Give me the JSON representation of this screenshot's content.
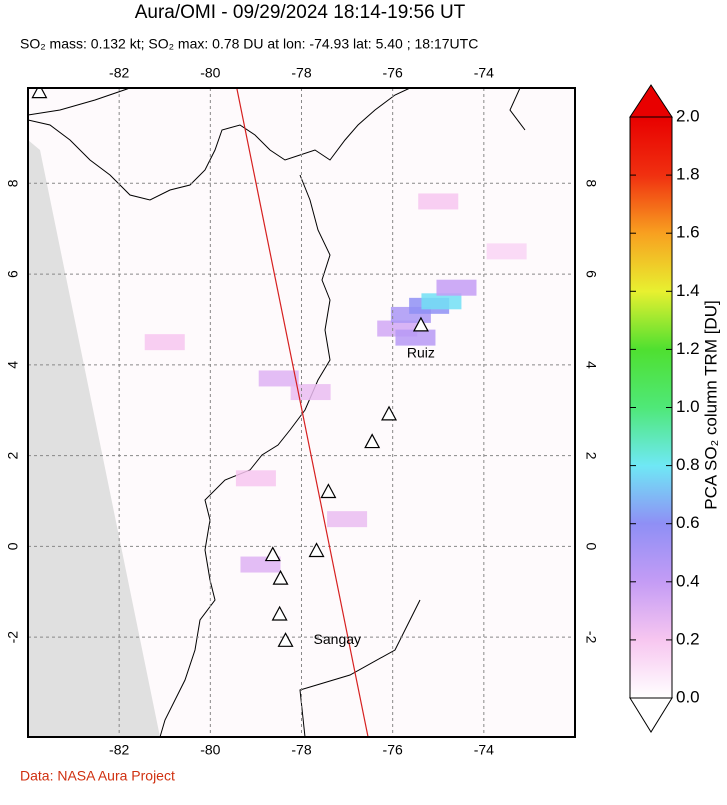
{
  "title": "Aura/OMI - 09/29/2024 18:14-19:56 UT",
  "subtitle": "SO₂ mass: 0.132 kt; SO₂ max: 0.78 DU at lon: -74.93 lat: 5.40 ; 18:17UTC",
  "map": {
    "lonlim": [
      -84,
      -72
    ],
    "latlim": [
      -4.2,
      10.1
    ],
    "lonticks": [
      -82,
      -80,
      -78,
      -76,
      -74
    ],
    "latticks": [
      -2,
      0,
      2,
      4,
      6,
      8
    ],
    "grid": true,
    "orbit_track": {
      "color": "#d62020",
      "lon": [
        -79.42,
        -76.54
      ],
      "lat": [
        10.1,
        -4.2
      ]
    },
    "volcanoes": [
      {
        "lon": -83.75,
        "lat": 10.02
      },
      {
        "lon": -75.38,
        "lat": 4.88,
        "name": "Ruiz"
      },
      {
        "lon": -76.08,
        "lat": 2.92
      },
      {
        "lon": -76.45,
        "lat": 2.31
      },
      {
        "lon": -77.41,
        "lat": 1.21
      },
      {
        "lon": -77.67,
        "lat": -0.09
      },
      {
        "lon": -78.63,
        "lat": -0.18
      },
      {
        "lon": -78.46,
        "lat": -0.7
      },
      {
        "lon": -78.48,
        "lat": -1.49
      },
      {
        "lon": -78.35,
        "lat": -2.07,
        "name": "Sangay"
      }
    ],
    "pixels": [
      {
        "lon": -75.9,
        "lat": 4.8,
        "value": 0.35
      },
      {
        "lon": -75.6,
        "lat": 5.1,
        "value": 0.5
      },
      {
        "lon": -75.5,
        "lat": 4.6,
        "value": 0.45
      },
      {
        "lon": -75.2,
        "lat": 5.3,
        "value": 0.6
      },
      {
        "lon": -74.93,
        "lat": 5.4,
        "value": 0.78
      },
      {
        "lon": -74.6,
        "lat": 5.7,
        "value": 0.4
      },
      {
        "lon": -78.5,
        "lat": 3.7,
        "value": 0.3
      },
      {
        "lon": -77.8,
        "lat": 3.4,
        "value": 0.25
      },
      {
        "lon": -79.0,
        "lat": 1.5,
        "value": 0.2
      },
      {
        "lon": -77.0,
        "lat": 0.6,
        "value": 0.25
      },
      {
        "lon": -78.9,
        "lat": -0.4,
        "value": 0.3
      },
      {
        "lon": -75.0,
        "lat": 7.6,
        "value": 0.2
      },
      {
        "lon": -81.0,
        "lat": 4.5,
        "value": 0.2
      },
      {
        "lon": -73.5,
        "lat": 6.5,
        "value": 0.15
      }
    ]
  },
  "colorbar": {
    "label": "PCA SO₂ column TRM [DU]",
    "lim": [
      0,
      2
    ],
    "ticks": [
      {
        "value": 0,
        "label": "0.0"
      },
      {
        "value": 0.2,
        "label": "0.2"
      },
      {
        "value": 0.4,
        "label": "0.4"
      },
      {
        "value": 0.6,
        "label": "0.6"
      },
      {
        "value": 0.8,
        "label": "0.8"
      },
      {
        "value": 1,
        "label": "1.0"
      },
      {
        "value": 1.2,
        "label": "1.2"
      },
      {
        "value": 1.4,
        "label": "1.4"
      },
      {
        "value": 1.6,
        "label": "1.6"
      },
      {
        "value": 1.8,
        "label": "1.8"
      },
      {
        "value": 2,
        "label": "2.0"
      }
    ],
    "colormap": [
      "#ffffff",
      "#f7c6f0",
      "#c49cf5",
      "#8f8ff5",
      "#6fe8f5",
      "#4fe878",
      "#4fe030",
      "#e8f030",
      "#f8a020",
      "#f03010",
      "#e80000"
    ]
  },
  "footer": "Data: NASA Aura Project"
}
